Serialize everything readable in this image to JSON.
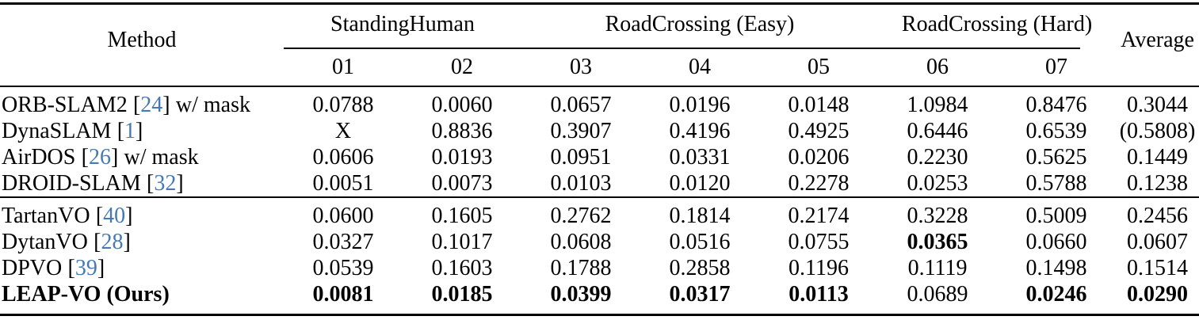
{
  "table": {
    "method_header": "Method",
    "average_header": "Average",
    "citation_brackets": [
      "[",
      "]"
    ],
    "groups": [
      {
        "label": "StandingHuman"
      },
      {
        "label": "RoadCrossing (Easy)"
      },
      {
        "label": "RoadCrossing (Hard)"
      }
    ],
    "subheaders": [
      "01",
      "02",
      "03",
      "04",
      "05",
      "06",
      "07"
    ],
    "sections": [
      {
        "rows": [
          {
            "name": "ORB-SLAM2",
            "cite": "24",
            "suffix": "w/ mask",
            "bold_method": false,
            "bold": [],
            "values": [
              "0.0788",
              "0.0060",
              "0.0657",
              "0.0196",
              "0.0148",
              "1.0984",
              "0.8476",
              "0.3044"
            ]
          },
          {
            "name": "DynaSLAM",
            "cite": "1",
            "suffix": "",
            "bold_method": false,
            "bold": [],
            "values": [
              "X",
              "0.8836",
              "0.3907",
              "0.4196",
              "0.4925",
              "0.6446",
              "0.6539",
              "(0.5808)"
            ]
          },
          {
            "name": "AirDOS",
            "cite": "26",
            "suffix": "w/ mask",
            "bold_method": false,
            "bold": [],
            "values": [
              "0.0606",
              "0.0193",
              "0.0951",
              "0.0331",
              "0.0206",
              "0.2230",
              "0.5625",
              "0.1449"
            ]
          },
          {
            "name": "DROID-SLAM",
            "cite": "32",
            "suffix": "",
            "bold_method": false,
            "bold": [],
            "values": [
              "0.0051",
              "0.0073",
              "0.0103",
              "0.0120",
              "0.2278",
              "0.0253",
              "0.5788",
              "0.1238"
            ]
          }
        ]
      },
      {
        "rows": [
          {
            "name": "TartanVO",
            "cite": "40",
            "suffix": "",
            "bold_method": false,
            "bold": [],
            "values": [
              "0.0600",
              "0.1605",
              "0.2762",
              "0.1814",
              "0.2174",
              "0.3228",
              "0.5009",
              "0.2456"
            ]
          },
          {
            "name": "DytanVO",
            "cite": "28",
            "suffix": "",
            "bold_method": false,
            "bold": [
              5
            ],
            "values": [
              "0.0327",
              "0.1017",
              "0.0608",
              "0.0516",
              "0.0755",
              "0.0365",
              "0.0660",
              "0.0607"
            ]
          },
          {
            "name": "DPVO",
            "cite": "39",
            "suffix": "",
            "bold_method": false,
            "bold": [],
            "values": [
              "0.0539",
              "0.1603",
              "0.1788",
              "0.2858",
              "0.1196",
              "0.1119",
              "0.1498",
              "0.1514"
            ]
          },
          {
            "name": "LEAP-VO (Ours)",
            "cite": null,
            "suffix": "",
            "bold_method": true,
            "bold": [
              0,
              1,
              2,
              3,
              4,
              6,
              7
            ],
            "values": [
              "0.0081",
              "0.0185",
              "0.0399",
              "0.0317",
              "0.0113",
              "0.0689",
              "0.0246",
              "0.0290"
            ]
          }
        ]
      }
    ]
  },
  "colors": {
    "citation_link": "#4479b4",
    "text": "#000000",
    "background": "#ffffff"
  }
}
